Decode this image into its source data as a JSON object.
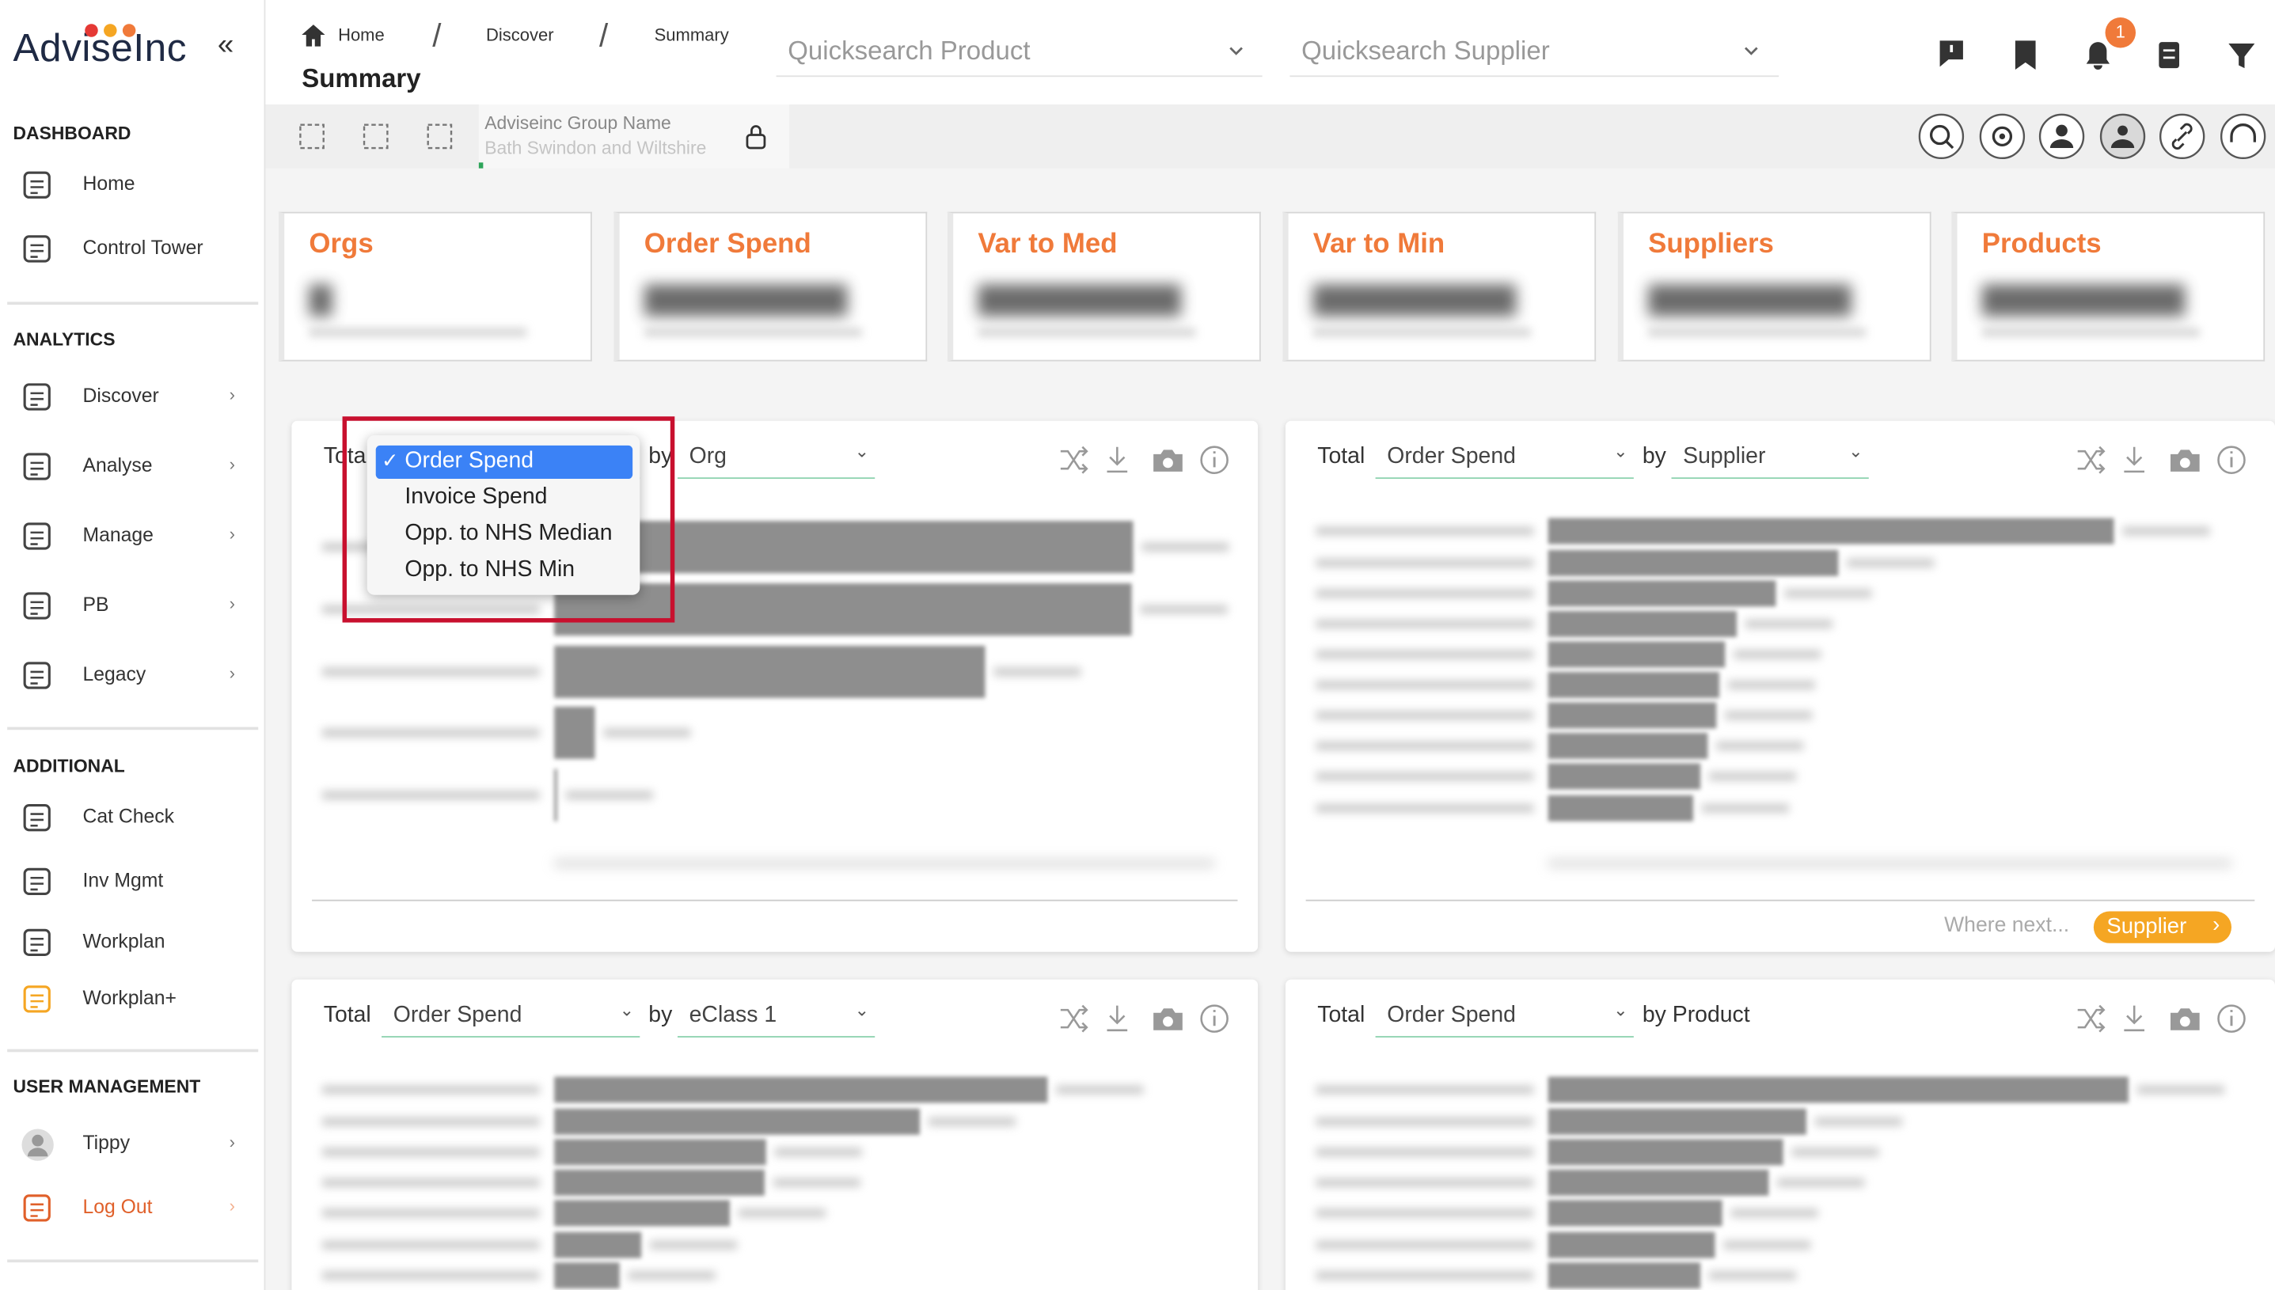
{
  "sidebar": {
    "logo": {
      "brand": "Advise",
      "suffix": "Inc"
    },
    "sections": [
      {
        "heading": "DASHBOARD",
        "items": [
          "Home",
          "Control Tower"
        ]
      },
      {
        "heading": "ANALYTICS",
        "items": [
          "Discover",
          "Analyse",
          "Manage",
          "PB",
          "Legacy"
        ]
      },
      {
        "heading": "ADDITIONAL",
        "items": [
          "Cat Check",
          "Inv Mgmt",
          "Workplan",
          "Workplan+"
        ]
      },
      {
        "heading": "USER MANAGEMENT",
        "items": [
          "Tippy",
          "Log Out"
        ]
      }
    ]
  },
  "header": {
    "breadcrumbs": [
      "Home",
      "Discover",
      "Summary"
    ],
    "title": "Summary",
    "search_product": "Quicksearch Product",
    "search_supplier": "Quicksearch Supplier",
    "notification_count": 1,
    "group_label": "Adviseinc Group Name",
    "group_value": "Bath Swindon and Wiltshire"
  },
  "kpis": [
    "Orgs",
    "Order Spend",
    "Var to Med",
    "Var to Min",
    "Suppliers",
    "Products"
  ],
  "panels": [
    {
      "total": "Total",
      "measure": "Order Spend",
      "by": "by",
      "dimension": "Org",
      "dropdown": {
        "options": [
          "Order Spend",
          "Invoice Spend",
          "Opp. to NHS Median",
          "Opp. to NHS Min"
        ],
        "selected": 0
      }
    },
    {
      "total": "Total",
      "measure": "Order Spend",
      "by": "by",
      "dimension": "Supplier",
      "where_next": "Where next...",
      "next_button": "Supplier"
    },
    {
      "total": "Total",
      "measure": "Order Spend",
      "by": "by",
      "dimension": "eClass 1"
    },
    {
      "total": "Total",
      "measure": "Order Spend",
      "by": "by Product"
    }
  ]
}
